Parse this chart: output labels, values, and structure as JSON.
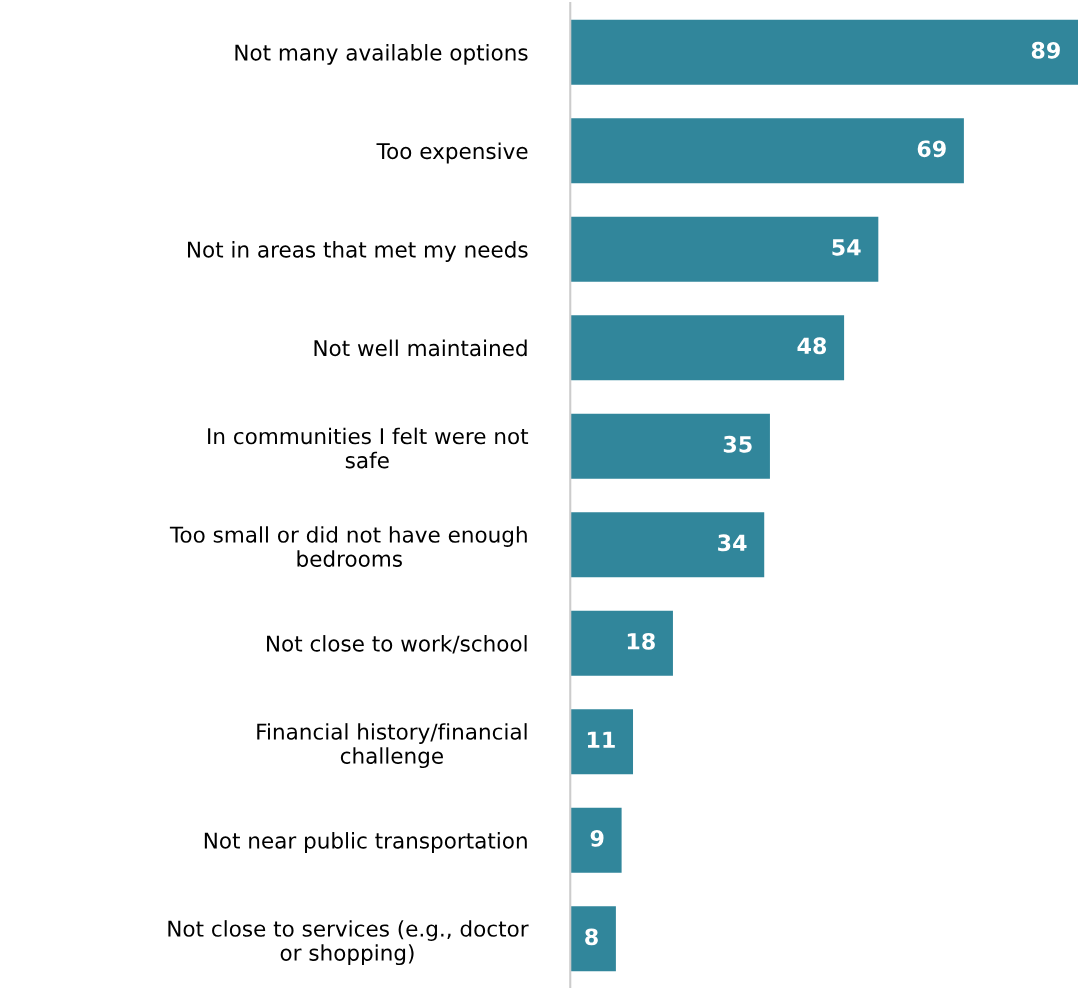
{
  "chart_data": {
    "type": "bar",
    "orientation": "horizontal",
    "categories": [
      "Not many available options",
      "Too expensive",
      "Not in areas that met my needs",
      "Not well maintained",
      "In communities I felt were not\nsafe",
      "Too small or did not have enough\nbedrooms",
      "Not close to work/school",
      "Financial history/financial\nchallenge",
      "Not near public transportation",
      "Not close to services (e.g., doctor\nor shopping)"
    ],
    "values": [
      89,
      69,
      54,
      48,
      35,
      34,
      18,
      11,
      9,
      8
    ],
    "color": "#31869b",
    "xlim": [
      0,
      89
    ],
    "data_labels": true,
    "grid": false,
    "legend": false,
    "tick_labels": "y"
  }
}
